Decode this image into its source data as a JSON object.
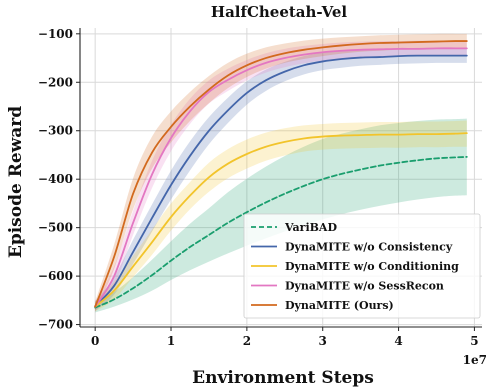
{
  "chart_data": {
    "type": "line",
    "title": "HalfCheetah-Vel",
    "xlabel": "Environment Steps",
    "ylabel": "Episode Reward",
    "x_multiplier_label": "1e7",
    "xlim": [
      -0.2,
      5.1
    ],
    "ylim": [
      -705,
      -88
    ],
    "xticks": [
      0,
      1,
      2,
      3,
      4,
      5
    ],
    "xtick_labels": [
      "0",
      "1",
      "2",
      "3",
      "4",
      "5"
    ],
    "yticks": [
      -700,
      -600,
      -500,
      -400,
      -300,
      -200,
      -100
    ],
    "ytick_labels": [
      "−700",
      "−600",
      "−500",
      "−400",
      "−300",
      "−200",
      "−100"
    ],
    "grid": true,
    "legend_position": "lower-right",
    "x": [
      0,
      0.25,
      0.5,
      0.75,
      1.0,
      1.25,
      1.5,
      1.75,
      2.0,
      2.25,
      2.5,
      2.75,
      3.0,
      3.25,
      3.5,
      3.75,
      4.0,
      4.25,
      4.5,
      4.75,
      4.9
    ],
    "series": [
      {
        "name": "VariBAD",
        "color": "#1a9e6e",
        "dash": "5,3",
        "values": [
          -665,
          -648,
          -625,
          -598,
          -568,
          -540,
          -515,
          -490,
          -468,
          -448,
          -430,
          -414,
          -400,
          -389,
          -380,
          -372,
          -366,
          -361,
          -357,
          -355,
          -354
        ],
        "lower": [
          -675,
          -663,
          -648,
          -630,
          -608,
          -588,
          -570,
          -553,
          -537,
          -522,
          -508,
          -495,
          -483,
          -472,
          -463,
          -455,
          -448,
          -442,
          -437,
          -434,
          -433
        ],
        "upper": [
          -655,
          -633,
          -602,
          -566,
          -528,
          -492,
          -460,
          -427,
          -399,
          -374,
          -352,
          -333,
          -317,
          -306,
          -297,
          -289,
          -284,
          -280,
          -277,
          -276,
          -275
        ]
      },
      {
        "name": "DynaMITE w/o Consistency",
        "color": "#4466aa",
        "dash": "",
        "values": [
          -662,
          -620,
          -550,
          -480,
          -412,
          -352,
          -300,
          -258,
          -222,
          -196,
          -178,
          -165,
          -157,
          -152,
          -149,
          -148,
          -146,
          -145,
          -145,
          -145,
          -145
        ],
        "lower": [
          -672,
          -638,
          -575,
          -508,
          -442,
          -382,
          -328,
          -284,
          -246,
          -218,
          -198,
          -184,
          -175,
          -170,
          -166,
          -164,
          -162,
          -161,
          -160,
          -160,
          -160
        ],
        "upper": [
          -652,
          -602,
          -525,
          -452,
          -382,
          -322,
          -272,
          -232,
          -198,
          -174,
          -158,
          -146,
          -139,
          -134,
          -132,
          -131,
          -130,
          -129,
          -129,
          -129,
          -129
        ]
      },
      {
        "name": "DynaMITE w/o Conditioning",
        "color": "#f2c42b",
        "dash": "",
        "values": [
          -663,
          -630,
          -580,
          -530,
          -478,
          -434,
          -396,
          -368,
          -348,
          -333,
          -323,
          -316,
          -312,
          -310,
          -309,
          -308,
          -308,
          -307,
          -307,
          -306,
          -305
        ],
        "lower": [
          -673,
          -648,
          -602,
          -556,
          -506,
          -462,
          -426,
          -398,
          -378,
          -362,
          -351,
          -343,
          -339,
          -337,
          -336,
          -335,
          -335,
          -334,
          -334,
          -333,
          -333
        ],
        "upper": [
          -653,
          -612,
          -558,
          -504,
          -450,
          -406,
          -366,
          -338,
          -318,
          -304,
          -295,
          -289,
          -286,
          -284,
          -283,
          -282,
          -282,
          -281,
          -281,
          -280,
          -279
        ]
      },
      {
        "name": "DynaMITE w/o SessRecon",
        "color": "#e377c2",
        "dash": "",
        "values": [
          -663,
          -600,
          -490,
          -390,
          -315,
          -260,
          -220,
          -195,
          -175,
          -160,
          -150,
          -143,
          -138,
          -135,
          -133,
          -132,
          -131,
          -131,
          -130,
          -130,
          -130
        ],
        "lower": [
          -673,
          -620,
          -515,
          -418,
          -342,
          -286,
          -244,
          -218,
          -196,
          -180,
          -169,
          -161,
          -155,
          -152,
          -150,
          -148,
          -147,
          -146,
          -146,
          -146,
          -146
        ],
        "upper": [
          -653,
          -580,
          -465,
          -362,
          -288,
          -234,
          -196,
          -172,
          -154,
          -140,
          -131,
          -125,
          -121,
          -118,
          -116,
          -115,
          -115,
          -114,
          -114,
          -114,
          -114
        ]
      },
      {
        "name": "DynaMITE (Ours)",
        "color": "#d2691e",
        "dash": "",
        "values": [
          -663,
          -560,
          -430,
          -345,
          -292,
          -250,
          -215,
          -186,
          -165,
          -150,
          -140,
          -133,
          -128,
          -124,
          -121,
          -119,
          -118,
          -117,
          -116,
          -115,
          -115
        ],
        "lower": [
          -673,
          -585,
          -462,
          -378,
          -324,
          -280,
          -243,
          -212,
          -189,
          -172,
          -160,
          -152,
          -146,
          -141,
          -137,
          -135,
          -133,
          -132,
          -131,
          -130,
          -130
        ],
        "upper": [
          -653,
          -535,
          -398,
          -312,
          -260,
          -220,
          -187,
          -160,
          -141,
          -128,
          -120,
          -114,
          -110,
          -107,
          -105,
          -103,
          -102,
          -101,
          -100,
          -100,
          -100
        ]
      }
    ]
  }
}
